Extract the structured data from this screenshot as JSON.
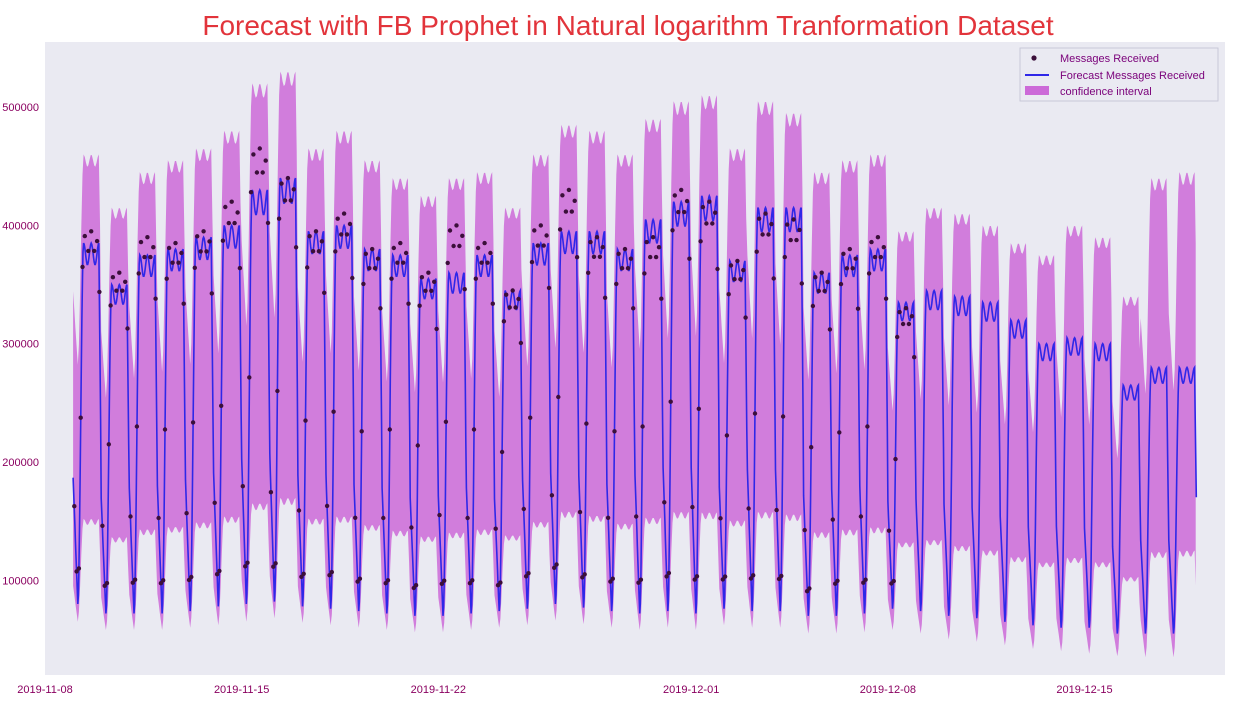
{
  "chart_data": {
    "type": "line",
    "title": "Forecast with FB Prophet in Natural logarithm Tranformation Dataset",
    "xlabel": "",
    "ylabel": "",
    "x_range": [
      "2019-11-08",
      "2019-12-20"
    ],
    "ylim": [
      20000,
      555000
    ],
    "x_ticks": [
      "2019-11-08",
      "2019-11-15",
      "2019-11-22",
      "2019-12-01",
      "2019-12-08",
      "2019-12-15"
    ],
    "y_ticks": [
      {
        "value": 100000,
        "label": "100000"
      },
      {
        "value": 200000,
        "label": "200000"
      },
      {
        "value": 300000,
        "label": "300000"
      },
      {
        "value": 400000,
        "label": "400000"
      },
      {
        "value": 500000,
        "label": "500000"
      }
    ],
    "grid": false,
    "legend_position": "top-right",
    "sampling": "daily peak (daytime plateau) and nightly trough values",
    "dates": [
      "2019-11-09",
      "2019-11-10",
      "2019-11-11",
      "2019-11-12",
      "2019-11-13",
      "2019-11-14",
      "2019-11-15",
      "2019-11-16",
      "2019-11-17",
      "2019-11-18",
      "2019-11-19",
      "2019-11-20",
      "2019-11-21",
      "2019-11-22",
      "2019-11-23",
      "2019-11-24",
      "2019-11-25",
      "2019-11-26",
      "2019-11-27",
      "2019-11-28",
      "2019-11-29",
      "2019-11-30",
      "2019-12-01",
      "2019-12-02",
      "2019-12-03",
      "2019-12-04",
      "2019-12-05",
      "2019-12-06",
      "2019-12-07",
      "2019-12-08",
      "2019-12-09",
      "2019-12-10",
      "2019-12-11",
      "2019-12-12",
      "2019-12-13",
      "2019-12-14",
      "2019-12-15",
      "2019-12-16",
      "2019-12-17",
      "2019-12-18"
    ],
    "series": [
      {
        "name": "Messages Received",
        "kind": "scatter",
        "color": "#3b0f3a",
        "peak": [
          395000,
          360000,
          390000,
          385000,
          395000,
          420000,
          465000,
          440000,
          395000,
          410000,
          380000,
          385000,
          360000,
          400000,
          385000,
          345000,
          400000,
          430000,
          390000,
          380000,
          390000,
          430000,
          420000,
          370000,
          410000,
          405000,
          360000,
          380000,
          390000,
          330000,
          null,
          null,
          null,
          null,
          null,
          null,
          null,
          null,
          null,
          null
        ],
        "trough": [
          80000,
          70000,
          70000,
          70000,
          72000,
          75000,
          78000,
          80000,
          75000,
          75000,
          72000,
          70000,
          68000,
          68000,
          70000,
          72000,
          75000,
          80000,
          75000,
          72000,
          70000,
          72000,
          70000,
          75000,
          72000,
          72000,
          65000,
          70000,
          70000,
          75000,
          null,
          null,
          null,
          null,
          null,
          null,
          null,
          null,
          null,
          null
        ]
      },
      {
        "name": "Forecast Messages Received",
        "kind": "line",
        "color": "#2f27e8",
        "peak": [
          385000,
          350000,
          375000,
          380000,
          390000,
          400000,
          430000,
          440000,
          395000,
          400000,
          380000,
          375000,
          355000,
          360000,
          375000,
          345000,
          385000,
          395000,
          395000,
          380000,
          405000,
          420000,
          425000,
          370000,
          415000,
          415000,
          360000,
          375000,
          380000,
          335000,
          345000,
          340000,
          335000,
          320000,
          300000,
          305000,
          300000,
          265000,
          280000,
          280000
        ],
        "trough": [
          80000,
          72000,
          72000,
          72000,
          74000,
          78000,
          80000,
          82000,
          78000,
          76000,
          74000,
          72000,
          70000,
          70000,
          72000,
          74000,
          76000,
          80000,
          77000,
          74000,
          72000,
          74000,
          72000,
          76000,
          74000,
          74000,
          70000,
          70000,
          72000,
          76000,
          74000,
          70000,
          68000,
          65000,
          62000,
          60000,
          60000,
          55000,
          55000,
          55000
        ]
      },
      {
        "name": "confidence interval",
        "kind": "band",
        "color": "#cc6ad8",
        "upper": [
          460000,
          415000,
          445000,
          455000,
          465000,
          480000,
          520000,
          530000,
          465000,
          480000,
          455000,
          440000,
          425000,
          440000,
          445000,
          415000,
          460000,
          485000,
          480000,
          460000,
          490000,
          505000,
          510000,
          465000,
          505000,
          495000,
          445000,
          455000,
          460000,
          395000,
          415000,
          410000,
          400000,
          385000,
          375000,
          400000,
          390000,
          340000,
          440000,
          445000
        ],
        "lower": [
          65000,
          58000,
          58000,
          58000,
          60000,
          62000,
          65000,
          68000,
          64000,
          62000,
          60000,
          58000,
          56000,
          56000,
          58000,
          60000,
          62000,
          66000,
          63000,
          60000,
          58000,
          60000,
          58000,
          62000,
          60000,
          60000,
          55000,
          55000,
          56000,
          58000,
          55000,
          50000,
          48000,
          45000,
          42000,
          40000,
          38000,
          36000,
          35000,
          35000
        ]
      }
    ]
  }
}
